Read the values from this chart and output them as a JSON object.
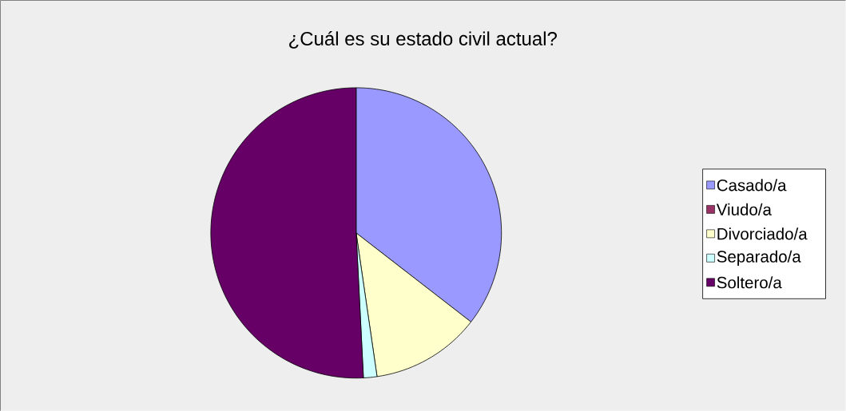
{
  "chart_data": {
    "type": "pie",
    "title": "¿Cuál es su estado civil actual?",
    "categories": [
      "Casado/a",
      "Viudo/a",
      "Divorciado/a",
      "Separado/a",
      "Soltero/a"
    ],
    "values": [
      35.5,
      0,
      12.2,
      1.5,
      50.8
    ],
    "colors": [
      "#9999ff",
      "#993366",
      "#ffffcc",
      "#ccffff",
      "#660066"
    ],
    "legend": "right"
  }
}
